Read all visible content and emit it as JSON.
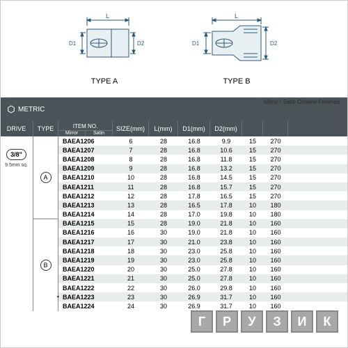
{
  "diagram": {
    "typeA": {
      "label": "TYPE A",
      "L": "L",
      "D1": "D1",
      "D2": "D2"
    },
    "typeB": {
      "label": "TYPE B",
      "L": "L",
      "D1": "D1",
      "D2": "D2"
    }
  },
  "header": {
    "metric": "METRIC",
    "finish": "Mirror / Satin Chrome Finished"
  },
  "columns": {
    "drive": "DRIVE",
    "type": "TYPE",
    "item_top": "ITEM NO.",
    "item_mirror": "Mirror",
    "item_satin": "Satin",
    "size": "SIZE(mm)",
    "l": "L(mm)",
    "d1": "D1(mm)",
    "d2": "D2(mm)",
    "c7": "",
    "c8": ""
  },
  "drive": {
    "badge": "3/8\"",
    "sub": "9.5mm sq."
  },
  "types": {
    "a": "A",
    "b": "B"
  },
  "rows": [
    {
      "item": "BAEA1206",
      "size": "6",
      "l": "28",
      "d1": "16.8",
      "d2": "9.9",
      "c7": "15",
      "c8": "270",
      "mark": ""
    },
    {
      "item": "BAEA1207",
      "size": "7",
      "l": "28",
      "d1": "16.8",
      "d2": "10.6",
      "c7": "15",
      "c8": "270",
      "mark": ""
    },
    {
      "item": "BAEA1208",
      "size": "8",
      "l": "28",
      "d1": "16.8",
      "d2": "11.8",
      "c7": "15",
      "c8": "270",
      "mark": ""
    },
    {
      "item": "BAEA1209",
      "size": "9",
      "l": "28",
      "d1": "16.8",
      "d2": "13.2",
      "c7": "15",
      "c8": "270",
      "mark": ""
    },
    {
      "item": "BAEA1210",
      "size": "10",
      "l": "28",
      "d1": "16.8",
      "d2": "14.5",
      "c7": "15",
      "c8": "270",
      "mark": ""
    },
    {
      "item": "BAEA1211",
      "size": "11",
      "l": "28",
      "d1": "16.8",
      "d2": "15.7",
      "c7": "15",
      "c8": "270",
      "mark": ""
    },
    {
      "item": "BAEA1212",
      "size": "12",
      "l": "28",
      "d1": "17.8",
      "d2": "16.5",
      "c7": "15",
      "c8": "270",
      "mark": ""
    },
    {
      "item": "BAEA1213",
      "size": "13",
      "l": "28",
      "d1": "16.5",
      "d2": "17.8",
      "c7": "10",
      "c8": "180",
      "mark": ""
    },
    {
      "item": "BAEA1214",
      "size": "14",
      "l": "28",
      "d1": "17.0",
      "d2": "19.8",
      "c7": "10",
      "c8": "180",
      "mark": ""
    },
    {
      "item": "BAEA1215",
      "size": "15",
      "l": "28",
      "d1": "19.0",
      "d2": "21.8",
      "c7": "10",
      "c8": "160",
      "mark": ""
    },
    {
      "item": "BAEA1216",
      "size": "16",
      "l": "30",
      "d1": "19.0",
      "d2": "21.8",
      "c7": "10",
      "c8": "160",
      "mark": ""
    },
    {
      "item": "BAEA1217",
      "size": "17",
      "l": "30",
      "d1": "21.0",
      "d2": "23.8",
      "c7": "10",
      "c8": "160",
      "mark": ""
    },
    {
      "item": "BAEA1218",
      "size": "18",
      "l": "30",
      "d1": "23.0",
      "d2": "25.8",
      "c7": "10",
      "c8": "160",
      "mark": ""
    },
    {
      "item": "BAEA1219",
      "size": "19",
      "l": "30",
      "d1": "23.0",
      "d2": "25.8",
      "c7": "10",
      "c8": "160",
      "mark": ""
    },
    {
      "item": "BAEA1220",
      "size": "20",
      "l": "30",
      "d1": "25.0",
      "d2": "27.8",
      "c7": "10",
      "c8": "160",
      "mark": ""
    },
    {
      "item": "BAEA1221",
      "size": "21",
      "l": "30",
      "d1": "25.0",
      "d2": "27.8",
      "c7": "10",
      "c8": "160",
      "mark": ""
    },
    {
      "item": "BAEA1222",
      "size": "22",
      "l": "30",
      "d1": "26.0",
      "d2": "29.8",
      "c7": "10",
      "c8": "160",
      "mark": ""
    },
    {
      "item": "BAEA1223",
      "size": "23",
      "l": "30",
      "d1": "26.9",
      "d2": "31.7",
      "c7": "10",
      "c8": "160",
      "mark": "•"
    },
    {
      "item": "BAEA1224",
      "size": "24",
      "l": "30",
      "d1": "26.9",
      "d2": "31.7",
      "c7": "10",
      "c8": "160",
      "mark": ""
    }
  ],
  "typeA_count": 9,
  "watermark": [
    "Г",
    "Р",
    "У",
    "З",
    "И",
    "К"
  ],
  "colors": {
    "header_bg": "#4a5458",
    "row_alt": "#e8eced",
    "line": "#2a5a7a"
  }
}
